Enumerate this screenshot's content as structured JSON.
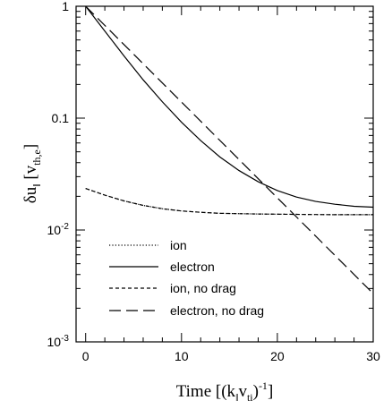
{
  "chart_data": {
    "type": "line",
    "title": "",
    "xlabel": {
      "main": "Time  [(k",
      "sub1": "‖",
      "mid": "v",
      "sub2": "ti",
      "close": ")",
      "sup": "-1",
      "end": "]"
    },
    "ylabel": {
      "main": "δu",
      "sub1": "‖",
      "bracket_open": " [v",
      "sub2": "th,e",
      "bracket_close": "]"
    },
    "xlim": [
      -1,
      30
    ],
    "ylim": [
      0.001,
      1
    ],
    "yscale": "log",
    "grid": false,
    "legend_position": "lower-left",
    "x_ticks": [
      {
        "value": 0,
        "label": "0"
      },
      {
        "value": 10,
        "label": "10"
      },
      {
        "value": 20,
        "label": "20"
      },
      {
        "value": 30,
        "label": "30"
      }
    ],
    "y_ticks": [
      {
        "value": 1,
        "label": "1",
        "style": "plain"
      },
      {
        "value": 0.1,
        "label": "0.1",
        "style": "plain"
      },
      {
        "value": 0.01,
        "label": "10",
        "exp": "-2",
        "style": "pow"
      },
      {
        "value": 0.001,
        "label": "10",
        "exp": "-3",
        "style": "pow"
      }
    ],
    "series": [
      {
        "name": "ion",
        "dash": "dotted",
        "x": [
          0,
          2,
          4,
          6,
          8,
          10,
          12,
          14,
          16,
          18,
          20,
          22,
          24,
          26,
          28,
          30
        ],
        "y": [
          0.0235,
          0.0205,
          0.0182,
          0.0166,
          0.0155,
          0.0148,
          0.0144,
          0.0141,
          0.014,
          0.0139,
          0.01385,
          0.0138,
          0.01375,
          0.0137,
          0.0137,
          0.0137
        ]
      },
      {
        "name": "electron",
        "dash": "solid",
        "x": [
          0,
          2,
          4,
          6,
          8,
          10,
          12,
          14,
          16,
          18,
          20,
          22,
          24,
          26,
          28,
          30
        ],
        "y": [
          1.0,
          0.6,
          0.36,
          0.22,
          0.14,
          0.092,
          0.063,
          0.045,
          0.034,
          0.027,
          0.0225,
          0.0197,
          0.018,
          0.017,
          0.0163,
          0.016
        ]
      },
      {
        "name": "ion, no drag",
        "dash": "short-dash",
        "x": [
          0,
          2,
          4,
          6,
          8,
          10,
          12,
          14,
          16,
          18,
          20,
          22,
          24,
          26,
          28,
          30
        ],
        "y": [
          0.0235,
          0.0205,
          0.0182,
          0.0166,
          0.0155,
          0.0148,
          0.0144,
          0.0141,
          0.014,
          0.0139,
          0.01385,
          0.0138,
          0.01375,
          0.0137,
          0.0137,
          0.0137
        ]
      },
      {
        "name": "electron, no drag",
        "dash": "long-dash",
        "x": [
          0,
          30
        ],
        "y": [
          1.0,
          0.0027
        ]
      }
    ]
  }
}
